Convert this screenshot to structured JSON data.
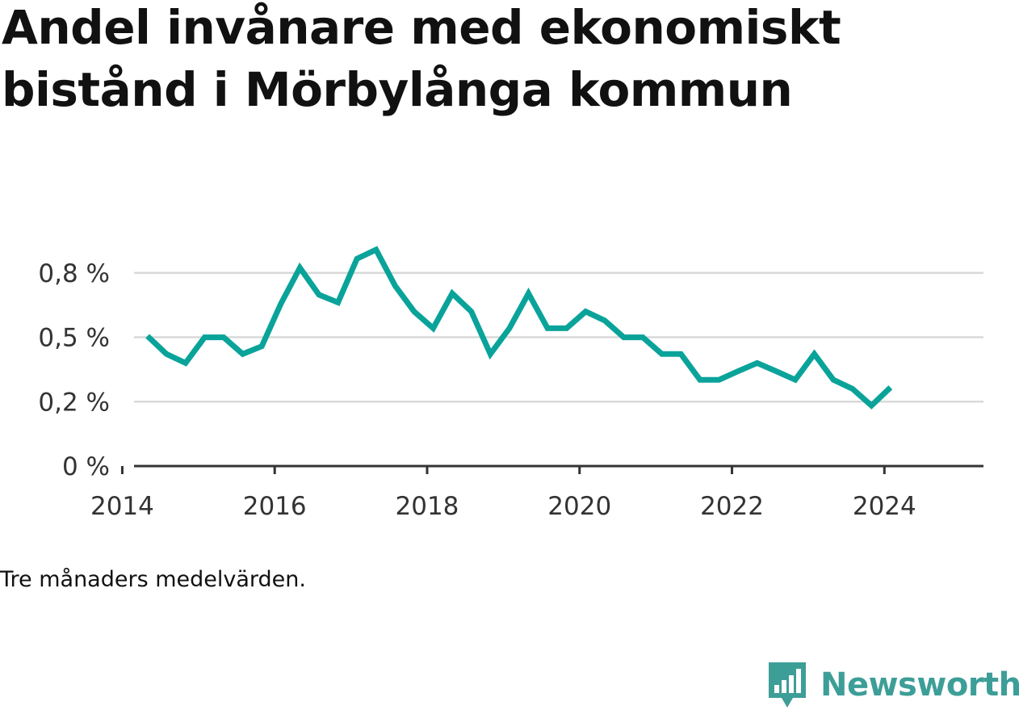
{
  "title": "Andel invånare med ekonomiskt bistånd i Mörbylånga kommun",
  "footnote": "Tre månaders medelvärden.",
  "brand": {
    "name": "Newsworthy",
    "color": "#3d9e98",
    "logo_icon": "bar-chart-speech-bubble-icon"
  },
  "chart_data": {
    "type": "line",
    "title": "Andel invånare med ekonomiskt bistånd i Mörbylånga kommun",
    "xlabel": "",
    "ylabel": "",
    "xlim": [
      2013.9,
      2025.3
    ],
    "ylim": [
      0,
      0.9
    ],
    "x_ticks": [
      {
        "value": 2014,
        "label": "2014"
      },
      {
        "value": 2016,
        "label": "2016"
      },
      {
        "value": 2018,
        "label": "2018"
      },
      {
        "value": 2020,
        "label": "2020"
      },
      {
        "value": 2022,
        "label": "2022"
      },
      {
        "value": 2024,
        "label": "2024"
      }
    ],
    "y_ticks": [
      {
        "value": 0,
        "label": "0 %"
      },
      {
        "value": 0.25,
        "label": "0,2 %"
      },
      {
        "value": 0.5,
        "label": "0,5 %"
      },
      {
        "value": 0.75,
        "label": "0,8 %"
      }
    ],
    "grid": true,
    "line_color": "#0aa39a",
    "series": [
      {
        "x": [
          2014.33,
          2014.58,
          2014.83,
          2015.08,
          2015.33,
          2015.58,
          2015.83,
          2016.08,
          2016.33,
          2016.58,
          2016.83,
          2017.08,
          2017.33,
          2017.58,
          2017.83,
          2018.08,
          2018.33,
          2018.58,
          2018.83,
          2019.08,
          2019.33,
          2019.58,
          2019.83,
          2020.08,
          2020.33,
          2020.58,
          2020.83,
          2021.08,
          2021.33,
          2021.58,
          2021.83,
          2022.08,
          2022.33,
          2022.58,
          2022.83,
          2023.08,
          2023.33,
          2023.58,
          2023.83,
          2024.08
        ],
        "values": [
          0.505,
          0.435,
          0.4,
          0.5,
          0.5,
          0.435,
          0.465,
          0.63,
          0.77,
          0.665,
          0.635,
          0.805,
          0.84,
          0.7,
          0.6,
          0.535,
          0.67,
          0.6,
          0.435,
          0.535,
          0.67,
          0.535,
          0.535,
          0.6,
          0.565,
          0.5,
          0.5,
          0.435,
          0.435,
          0.335,
          0.335,
          0.368,
          0.4,
          0.368,
          0.335,
          0.435,
          0.335,
          0.3,
          0.235,
          0.305
        ]
      }
    ]
  }
}
